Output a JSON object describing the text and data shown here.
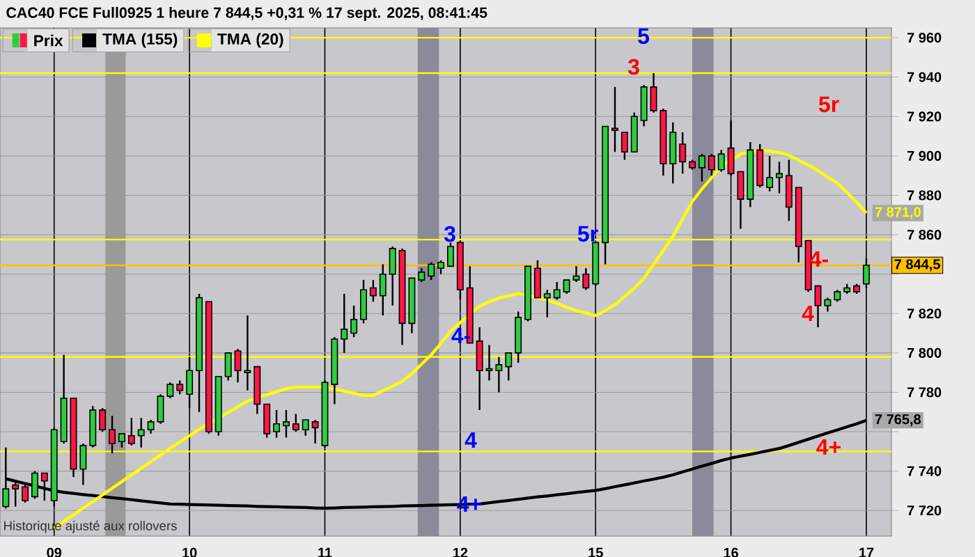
{
  "chart_data": {
    "type": "candlestick",
    "title": "CAC40 FCE Full0925 1 heure 7 844,5 +0,31 % 17 sept. 2025, 08:41:45",
    "categories": [
      null,
      null,
      null,
      null,
      null,
      "09",
      null,
      null,
      null,
      null,
      null,
      null,
      null,
      null,
      null,
      null,
      null,
      null,
      null,
      "10",
      null,
      null,
      null,
      null,
      null,
      null,
      null,
      null,
      null,
      null,
      null,
      null,
      null,
      "11",
      null,
      null,
      null,
      null,
      null,
      null,
      null,
      null,
      null,
      null,
      null,
      null,
      null,
      "12",
      null,
      null,
      null,
      null,
      null,
      null,
      null,
      null,
      null,
      null,
      null,
      null,
      null,
      "15",
      null,
      null,
      null,
      null,
      null,
      null,
      null,
      null,
      null,
      null,
      null,
      null,
      null,
      "16",
      null,
      null,
      null,
      null,
      null,
      null,
      null,
      null,
      null,
      null,
      null,
      null,
      null,
      "17"
    ],
    "ylim": [
      7707,
      7965
    ],
    "yticks": [
      {
        "value": 7720,
        "label": "7 720"
      },
      {
        "value": 7740,
        "label": "7 740"
      },
      {
        "value": 7760,
        "label": null
      },
      {
        "value": 7780,
        "label": "7 780"
      },
      {
        "value": 7800,
        "label": "7 800"
      },
      {
        "value": 7820,
        "label": "7 820"
      },
      {
        "value": 7840,
        "label": null
      },
      {
        "value": 7860,
        "label": "7 860"
      },
      {
        "value": 7880,
        "label": "7 880"
      },
      {
        "value": 7900,
        "label": "7 900"
      },
      {
        "value": 7920,
        "label": "7 920"
      },
      {
        "value": 7940,
        "label": "7 940"
      },
      {
        "value": 7960,
        "label": "7 960"
      }
    ],
    "grid": true,
    "legend": "top left",
    "series": [
      {
        "name": "Prix",
        "ohlc": [
          [
            7722,
            7752,
            7721,
            7731
          ],
          [
            7733,
            7735,
            7722,
            7731
          ],
          [
            7732,
            7734,
            7724,
            7725
          ],
          [
            7727,
            7740,
            7726,
            7739
          ],
          [
            7739,
            7739,
            7725,
            7735
          ],
          [
            7725,
            7762,
            7722,
            7761
          ],
          [
            7755,
            7799,
            7754,
            7777
          ],
          [
            7777,
            7777,
            7737,
            7741
          ],
          [
            7741,
            7754,
            7733,
            7753
          ],
          [
            7753,
            7773,
            7752,
            7771
          ],
          [
            7771,
            7772,
            7760,
            7761
          ],
          [
            7761,
            7768,
            7749,
            7754
          ],
          [
            7755,
            7759,
            7752,
            7759
          ],
          [
            7758,
            7767,
            7753,
            7754
          ],
          [
            7758,
            7767,
            7752,
            7761
          ],
          [
            7761,
            7766,
            7759,
            7765
          ],
          [
            7765,
            7779,
            7764,
            7778
          ],
          [
            7778,
            7785,
            7777,
            7784
          ],
          [
            7784,
            7786,
            7779,
            7781
          ],
          [
            7779,
            7798,
            7772,
            7791
          ],
          [
            7791,
            7830,
            7770,
            7828
          ],
          [
            7826,
            7826,
            7759,
            7760
          ],
          [
            7760,
            7788,
            7758,
            7788
          ],
          [
            7788,
            7800,
            7786,
            7800
          ],
          [
            7801,
            7802,
            7785,
            7791
          ],
          [
            7790,
            7819,
            7781,
            7791
          ],
          [
            7793,
            7793,
            7769,
            7774
          ],
          [
            7774,
            7774,
            7757,
            7759
          ],
          [
            7760,
            7771,
            7757,
            7764
          ],
          [
            7763,
            7771,
            7757,
            7765
          ],
          [
            7764,
            7769,
            7760,
            7761
          ],
          [
            7761,
            7766,
            7758,
            7766
          ],
          [
            7765,
            7766,
            7754,
            7762
          ],
          [
            7753,
            7786,
            7752,
            7785
          ],
          [
            7784,
            7808,
            7774,
            7807
          ],
          [
            7807,
            7830,
            7800,
            7812
          ],
          [
            7810,
            7824,
            7808,
            7817
          ],
          [
            7817,
            7837,
            7815,
            7832
          ],
          [
            7833,
            7837,
            7826,
            7829
          ],
          [
            7829,
            7845,
            7819,
            7840
          ],
          [
            7840,
            7854,
            7824,
            7853
          ],
          [
            7852,
            7853,
            7804,
            7815
          ],
          [
            7815,
            7838,
            7810,
            7838
          ],
          [
            7837,
            7843,
            7836,
            7841
          ],
          [
            7839,
            7846,
            7837,
            7845
          ],
          [
            7843,
            7847,
            7840,
            7846
          ],
          [
            7844,
            7856,
            7844,
            7854
          ],
          [
            7856,
            7857,
            7827,
            7832
          ],
          [
            7833,
            7844,
            7805,
            7805
          ],
          [
            7806,
            7813,
            7771,
            7791
          ],
          [
            7791,
            7804,
            7786,
            7792
          ],
          [
            7791,
            7798,
            7780,
            7794
          ],
          [
            7793,
            7800,
            7786,
            7800
          ],
          [
            7800,
            7821,
            7795,
            7818
          ],
          [
            7817,
            7844,
            7816,
            7844
          ],
          [
            7843,
            7847,
            7828,
            7828
          ],
          [
            7828,
            7832,
            7818,
            7830
          ],
          [
            7828,
            7836,
            7827,
            7832
          ],
          [
            7831,
            7837,
            7830,
            7837
          ],
          [
            7837,
            7844,
            7836,
            7839
          ],
          [
            7840,
            7843,
            7832,
            7833
          ],
          [
            7835,
            7856,
            7834,
            7856
          ],
          [
            7856,
            7915,
            7845,
            7915
          ],
          [
            7914,
            7935,
            7902,
            7913
          ],
          [
            7912,
            7912,
            7898,
            7902
          ],
          [
            7902,
            7922,
            7902,
            7920
          ],
          [
            7918,
            7936,
            7915,
            7935
          ],
          [
            7935,
            7942,
            7922,
            7923
          ],
          [
            7923,
            7924,
            7890,
            7896
          ],
          [
            7896,
            7917,
            7886,
            7912
          ],
          [
            7906,
            7912,
            7891,
            7897
          ],
          [
            7897,
            7898,
            7893,
            7894
          ],
          [
            7894,
            7901,
            7887,
            7900
          ],
          [
            7900,
            7901,
            7890,
            7893
          ],
          [
            7893,
            7903,
            7892,
            7901
          ],
          [
            7904,
            7918,
            7890,
            7891
          ],
          [
            7892,
            7892,
            7863,
            7878
          ],
          [
            7878,
            7907,
            7874,
            7903
          ],
          [
            7903,
            7906,
            7884,
            7885
          ],
          [
            7884,
            7900,
            7882,
            7889
          ],
          [
            7889,
            7897,
            7881,
            7891
          ],
          [
            7890,
            7898,
            7867,
            7874
          ],
          [
            7884,
            7884,
            7846,
            7854
          ],
          [
            7857,
            7857,
            7831,
            7832
          ],
          [
            7834,
            7834,
            7813,
            7824
          ],
          [
            7824,
            7828,
            7821,
            7827
          ],
          [
            7827,
            7832,
            7826,
            7831
          ],
          [
            7831,
            7835,
            7830,
            7833
          ],
          [
            7834,
            7835,
            7830,
            7831
          ],
          [
            7835,
            7848,
            7833,
            7844.5
          ]
        ],
        "colors": [
          "#2ecc40",
          "#ff1744",
          "#ff1744",
          "#2ecc40",
          "#ff1744",
          "#2ecc40",
          "#2ecc40",
          "#ff1744",
          "#2ecc40",
          "#2ecc40",
          "#ff1744",
          "#ff1744",
          "#2ecc40",
          "#ff1744",
          "#2ecc40",
          "#2ecc40",
          "#2ecc40",
          "#2ecc40",
          "#ff1744",
          "#2ecc40",
          "#2ecc40",
          "#ff1744",
          "#2ecc40",
          "#2ecc40",
          "#ff1744",
          "#2ecc40",
          "#ff1744",
          "#ff1744",
          "#2ecc40",
          "#2ecc40",
          "#ff1744",
          "#2ecc40",
          "#ff1744",
          "#2ecc40",
          "#2ecc40",
          "#2ecc40",
          "#2ecc40",
          "#2ecc40",
          "#ff1744",
          "#2ecc40",
          "#2ecc40",
          "#ff1744",
          "#2ecc40",
          "#2ecc40",
          "#2ecc40",
          "#2ecc40",
          "#2ecc40",
          "#ff1744",
          "#ff1744",
          "#ff1744",
          "#2ecc40",
          "#2ecc40",
          "#2ecc40",
          "#2ecc40",
          "#2ecc40",
          "#ff1744",
          "#2ecc40",
          "#2ecc40",
          "#2ecc40",
          "#2ecc40",
          "#ff1744",
          "#2ecc40",
          "#2ecc40",
          "#ff1744",
          "#ff1744",
          "#2ecc40",
          "#2ecc40",
          "#ff1744",
          "#ff1744",
          "#2ecc40",
          "#ff1744",
          "#ff1744",
          "#2ecc40",
          "#ff1744",
          "#2ecc40",
          "#ff1744",
          "#ff1744",
          "#2ecc40",
          "#ff1744",
          "#2ecc40",
          "#2ecc40",
          "#ff1744",
          "#ff1744",
          "#ff1744",
          "#ff1744",
          "#2ecc40",
          "#2ecc40",
          "#2ecc40",
          "#ff1744",
          "#2ecc40"
        ]
      },
      {
        "name": "TMA (155)",
        "type": "line",
        "color": "#000000",
        "values": [
          7736.1,
          7734.9,
          7733.7,
          7732.5,
          7731.2,
          7730.0,
          7729.2,
          7728.7,
          7728.1,
          7727.6,
          7727.1,
          7726.5,
          7726.0,
          7725.5,
          7724.9,
          7724.4,
          7723.8,
          7723.3,
          7723.2,
          7723.0,
          7722.9,
          7722.8,
          7722.7,
          7722.5,
          7722.4,
          7722.3,
          7722.1,
          7722.0,
          7721.9,
          7721.7,
          7721.6,
          7721.5,
          7721.3,
          7721.2,
          7721.3,
          7721.5,
          7721.6,
          7721.7,
          7721.9,
          7722.0,
          7722.1,
          7722.3,
          7722.4,
          7722.5,
          7722.7,
          7722.8,
          7722.9,
          7723.0,
          7723.2,
          7723.3,
          7723.9,
          7724.5,
          7725.1,
          7725.7,
          7726.3,
          7726.9,
          7727.4,
          7728.0,
          7728.5,
          7729.1,
          7729.7,
          7730.2,
          7731.1,
          7732.1,
          7733.0,
          7734.0,
          7735.0,
          7735.9,
          7736.9,
          7738.1,
          7739.6,
          7741.0,
          7742.5,
          7743.9,
          7745.4,
          7746.6,
          7747.6,
          7748.5,
          7749.5,
          7750.5,
          7751.5,
          7753.0,
          7754.6,
          7756.2,
          7757.8,
          7759.4,
          7760.9,
          7762.5,
          7764.0,
          7765.8
        ],
        "value_labels": [
          null,
          null,
          null,
          null,
          null,
          null,
          null,
          null,
          null,
          null,
          null,
          null,
          null,
          null,
          null,
          null,
          null,
          null,
          null,
          null,
          null,
          null,
          null,
          null,
          null,
          null,
          null,
          null,
          null,
          null,
          null,
          null,
          null,
          null,
          null,
          null,
          null,
          null,
          null,
          null,
          null,
          null,
          null,
          null,
          null,
          null,
          null,
          null,
          null,
          null,
          null,
          null,
          null,
          null,
          null,
          null,
          null,
          null,
          null,
          null,
          null,
          null,
          null,
          null,
          null,
          null,
          null,
          null,
          null,
          null,
          null,
          null,
          null,
          null,
          null,
          null,
          null,
          null,
          null,
          null,
          null,
          null,
          null,
          null,
          null,
          null,
          null,
          null,
          null,
          "7 765,8"
        ]
      },
      {
        "name": "TMA (20)",
        "type": "line",
        "color": "#ffff00",
        "values": [
          null,
          null,
          null,
          null,
          null,
          7711.0,
          7714.4,
          7717.8,
          7721.2,
          7724.5,
          7727.9,
          7731.3,
          7734.7,
          7738.1,
          7741.4,
          7744.8,
          7748.2,
          7751.6,
          7754.8,
          7758.0,
          7761.2,
          7764.2,
          7767.0,
          7769.8,
          7772.6,
          7775.5,
          7777.3,
          7778.8,
          7780.3,
          7781.8,
          7782.7,
          7782.7,
          7782.7,
          7782.7,
          7781.6,
          7780.6,
          7779.5,
          7778.4,
          7778.4,
          7780.8,
          7783.1,
          7785.5,
          7789.5,
          7794.3,
          7799.0,
          7804.8,
          7811.1,
          7815.4,
          7819.6,
          7823.7,
          7826.0,
          7827.8,
          7828.9,
          7830.1,
          7829.1,
          7828.1,
          7827.0,
          7825.1,
          7823.2,
          7821.4,
          7820.2,
          7818.9,
          7821.5,
          7824.5,
          7828.7,
          7832.8,
          7837.8,
          7844.9,
          7852.0,
          7859.1,
          7867.9,
          7876.8,
          7883.2,
          7888.9,
          7894.7,
          7897.8,
          7900.9,
          7902.1,
          7902.9,
          7902.4,
          7901.8,
          7900.3,
          7897.8,
          7895.4,
          7892.5,
          7889.3,
          7886.2,
          7881.4,
          7876.5,
          7871.0
        ],
        "value_labels": [
          null,
          null,
          null,
          null,
          null,
          null,
          null,
          null,
          null,
          null,
          null,
          null,
          null,
          null,
          null,
          null,
          null,
          null,
          null,
          null,
          null,
          null,
          null,
          null,
          null,
          null,
          null,
          null,
          null,
          null,
          null,
          null,
          null,
          null,
          null,
          null,
          null,
          null,
          null,
          null,
          null,
          null,
          null,
          null,
          null,
          null,
          null,
          null,
          null,
          null,
          null,
          null,
          null,
          null,
          null,
          null,
          null,
          null,
          null,
          null,
          null,
          null,
          null,
          null,
          null,
          null,
          null,
          null,
          null,
          null,
          null,
          null,
          null,
          null,
          null,
          null,
          null,
          null,
          null,
          null,
          null,
          null,
          null,
          null,
          null,
          null,
          null,
          null,
          null,
          "7 871,0"
        ]
      }
    ],
    "ref_lines": [
      {
        "axis": "y",
        "value": 7960,
        "color": "#ffff00"
      },
      {
        "axis": "y",
        "value": 7942,
        "color": "#ffff00"
      },
      {
        "axis": "y",
        "value": 7857.5,
        "color": "#ffff00"
      },
      {
        "axis": "y",
        "value": 7798,
        "color": "#ffff00"
      },
      {
        "axis": "y",
        "value": 7750,
        "color": "#ffff00"
      },
      {
        "axis": "y",
        "value": 7844.5,
        "label": "7 844,5",
        "color": "#ffc000"
      }
    ],
    "annotations": [
      "5",
      "3",
      "5r",
      "3",
      "5r",
      "4-",
      "4-",
      "4",
      "4",
      "4+",
      "4+",
      "Historique ajusté aux rollovers"
    ]
  }
}
